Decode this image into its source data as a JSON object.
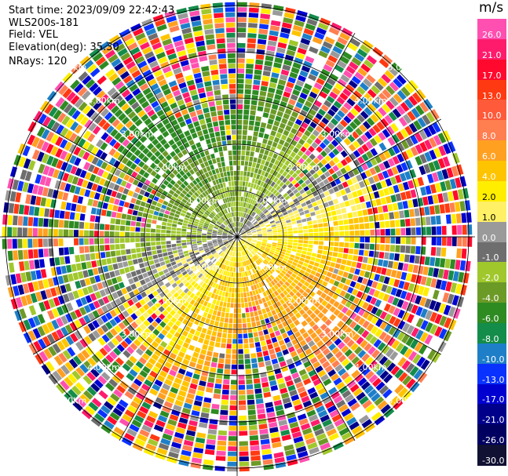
{
  "meta": {
    "start_time": "Start time: 2023/09/09 22:42:43",
    "instrument": "WLS200s-181",
    "field": "Field: VEL",
    "elevation": "Elevation(deg): 35.30",
    "nrays": "NRays: 120"
  },
  "colorbar": {
    "unit": "m/s",
    "ticks": [
      "26.0",
      "21.0",
      "17.0",
      "13.0",
      "10.0",
      "8.0",
      "6.0",
      "4.0",
      "2.0",
      "1.0",
      "0.0",
      "-1.0",
      "-2.0",
      "-4.0",
      "-6.0",
      "-8.0",
      "-10.0",
      "-13.0",
      "-17.0",
      "-21.0",
      "-26.0",
      "-30.0"
    ],
    "colors": [
      "#ff4fb0",
      "#ff1b6b",
      "#ff0a2e",
      "#ff3a12",
      "#ff5a3a",
      "#ff7f50",
      "#ffa020",
      "#ffc400",
      "#ffee00",
      "#fff066",
      "#9a9a9a",
      "#6e6e6e",
      "#a0c82d",
      "#6c9a26",
      "#2e8b22",
      "#148c4a",
      "#1e7fc8",
      "#0a32ff",
      "#0000d0",
      "#00008a",
      "#000060",
      "#111133"
    ]
  },
  "range_rings": {
    "labels": [
      "1.00km",
      "2.00km",
      "3.00km",
      "4.00km",
      "5.00km"
    ]
  }
}
